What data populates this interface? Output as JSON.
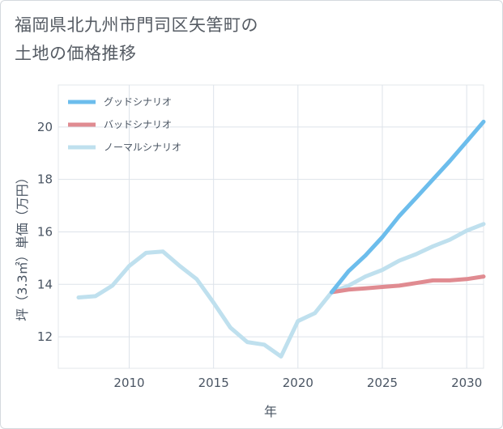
{
  "chart_data": {
    "type": "line",
    "title_lines": [
      "福岡県北九州市門司区矢筈町の",
      "土地の価格推移"
    ],
    "xlabel": "年",
    "ylabel": "坪（3.3㎡）単価（万円）",
    "xlim": [
      2005.8,
      2031
    ],
    "ylim": [
      10.8,
      21.6
    ],
    "x_ticks": [
      2010,
      2015,
      2020,
      2025,
      2030
    ],
    "y_ticks": [
      12,
      14,
      16,
      18,
      20
    ],
    "grid": true,
    "legend_position": "top-left",
    "series": [
      {
        "name": "グッドシナリオ",
        "color": "#6cbdec",
        "x": [
          2022,
          2023,
          2024,
          2025,
          2026,
          2027,
          2028,
          2029,
          2030,
          2031
        ],
        "values": [
          13.7,
          14.5,
          15.1,
          15.8,
          16.6,
          17.3,
          18.0,
          18.7,
          19.45,
          20.2
        ]
      },
      {
        "name": "バッドシナリオ",
        "color": "#e08b91",
        "x": [
          2022,
          2023,
          2024,
          2025,
          2026,
          2027,
          2028,
          2029,
          2030,
          2031
        ],
        "values": [
          13.7,
          13.8,
          13.85,
          13.9,
          13.95,
          14.05,
          14.15,
          14.15,
          14.2,
          14.3
        ]
      },
      {
        "name": "ノーマルシナリオ",
        "color": "#bfe0ee",
        "x": [
          2007,
          2008,
          2009,
          2010,
          2011,
          2012,
          2013,
          2014,
          2015,
          2016,
          2017,
          2018,
          2019,
          2020,
          2021,
          2022,
          2023,
          2024,
          2025,
          2026,
          2027,
          2028,
          2029,
          2030,
          2031
        ],
        "values": [
          13.5,
          13.55,
          13.95,
          14.7,
          15.2,
          15.25,
          14.7,
          14.2,
          13.3,
          12.35,
          11.8,
          11.7,
          11.25,
          12.6,
          12.9,
          13.7,
          13.95,
          14.3,
          14.55,
          14.9,
          15.15,
          15.45,
          15.7,
          16.05,
          16.3
        ]
      }
    ]
  }
}
